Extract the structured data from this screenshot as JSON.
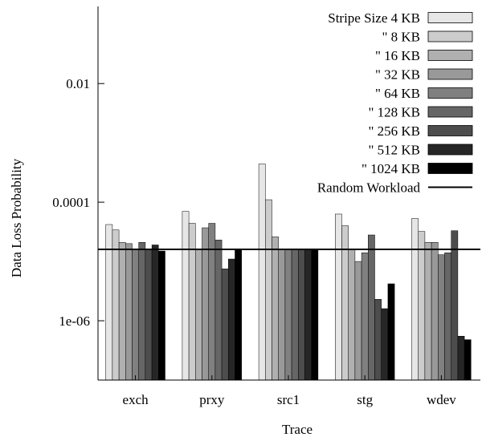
{
  "chart_data": {
    "type": "bar",
    "xlabel": "Trace",
    "ylabel": "Data Loss Probability",
    "yscale": "log",
    "ylim": [
      1e-07,
      0.2
    ],
    "yticks": [
      {
        "value": 0.01,
        "label": "0.01"
      },
      {
        "value": 0.0001,
        "label": "0.0001"
      },
      {
        "value": 1e-06,
        "label": "1e-06"
      }
    ],
    "categories": [
      "exch",
      "prxy",
      "src1",
      "stg",
      "wdev"
    ],
    "series": [
      {
        "name": "Stripe Size 4 KB",
        "color": "#e6e6e6",
        "values": [
          4.2e-05,
          7e-05,
          0.00044,
          6.3e-05,
          5.3e-05
        ]
      },
      {
        "name": "\" 8 KB",
        "color": "#cccccc",
        "values": [
          3.4e-05,
          4.4e-05,
          0.00011,
          4e-05,
          3.2e-05
        ]
      },
      {
        "name": "\" 16 KB",
        "color": "#b0b0b0",
        "values": [
          2.1e-05,
          1.6e-05,
          2.6e-05,
          1.6e-05,
          2.1e-05
        ]
      },
      {
        "name": "\" 32 KB",
        "color": "#999999",
        "values": [
          2e-05,
          3.7e-05,
          1.6e-05,
          1e-05,
          2.1e-05
        ]
      },
      {
        "name": "\" 64 KB",
        "color": "#808080",
        "values": [
          1.6e-05,
          4.4e-05,
          1.6e-05,
          1.4e-05,
          1.3e-05
        ]
      },
      {
        "name": "\" 128 KB",
        "color": "#666666",
        "values": [
          2.1e-05,
          2.3e-05,
          1.6e-05,
          2.8e-05,
          1.4e-05
        ]
      },
      {
        "name": "\" 256 KB",
        "color": "#4d4d4d",
        "values": [
          1.6e-05,
          7.5e-06,
          1.6e-05,
          2.3e-06,
          3.3e-05
        ]
      },
      {
        "name": "\" 512 KB",
        "color": "#262626",
        "values": [
          1.9e-05,
          1.1e-05,
          1.6e-05,
          1.6e-06,
          5.5e-07
        ]
      },
      {
        "name": "\" 1024 KB",
        "color": "#000000",
        "values": [
          1.5e-05,
          1.6e-05,
          1.6e-05,
          4.2e-06,
          4.8e-07
        ]
      }
    ],
    "reference_line": {
      "name": "Random Workload",
      "value": 1.6e-05,
      "color": "#000000"
    },
    "legend": {
      "position": "top-right"
    },
    "grid": false
  }
}
